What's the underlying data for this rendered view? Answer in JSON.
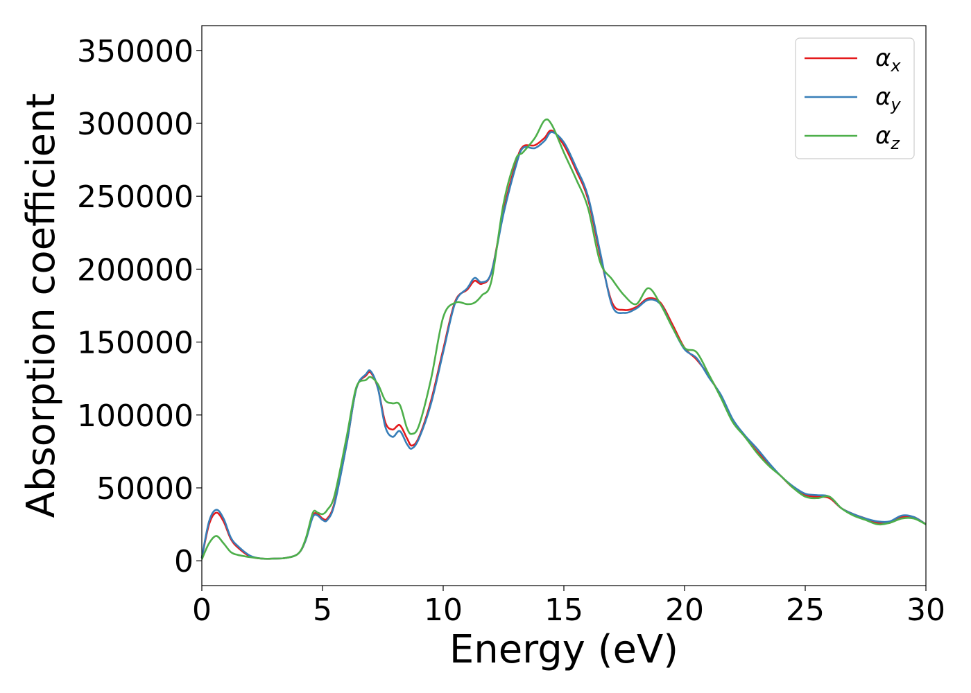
{
  "chart_data": {
    "type": "line",
    "title": "",
    "xlabel": "Energy (eV)",
    "ylabel": "Absorption coefficient",
    "xlim": [
      0,
      30
    ],
    "ylim": [
      -17000,
      367000
    ],
    "xticks": [
      0,
      5,
      10,
      15,
      20,
      25,
      30
    ],
    "xtick_labels": [
      "0",
      "5",
      "10",
      "15",
      "20",
      "25",
      "30"
    ],
    "yticks": [
      0,
      50000,
      100000,
      150000,
      200000,
      250000,
      300000,
      350000
    ],
    "ytick_labels": [
      "0",
      "50000",
      "100000",
      "150000",
      "200000",
      "250000",
      "300000",
      "350000"
    ],
    "grid": false,
    "legend_position": "top-right",
    "series": [
      {
        "name": "αx",
        "symbol": "α",
        "subscript": "x",
        "color": "#e41a1c",
        "x": [
          0,
          0.3,
          0.6,
          0.9,
          1.2,
          1.5,
          2,
          2.5,
          3,
          3.5,
          4,
          4.3,
          4.6,
          4.8,
          5,
          5.2,
          5.5,
          6,
          6.4,
          6.8,
          7,
          7.3,
          7.6,
          7.9,
          8.2,
          8.5,
          8.7,
          9,
          9.5,
          10,
          10.5,
          11,
          11.3,
          11.6,
          12,
          12.5,
          13,
          13.3,
          13.8,
          14.2,
          14.5,
          15,
          15.5,
          16,
          16.5,
          17,
          17.5,
          18,
          18.5,
          19,
          19.5,
          20,
          20.5,
          21,
          21.5,
          22,
          22.5,
          23,
          23.5,
          24,
          24.5,
          25,
          25.5,
          26,
          26.5,
          27,
          27.5,
          28,
          28.5,
          29,
          29.5,
          30
        ],
        "y": [
          2000,
          25000,
          33000,
          27000,
          15000,
          9000,
          3000,
          1500,
          1500,
          2000,
          5000,
          14000,
          31000,
          32000,
          29000,
          29000,
          40000,
          80000,
          118000,
          127000,
          129000,
          118000,
          95000,
          90000,
          93000,
          84000,
          79000,
          85000,
          110000,
          145000,
          178000,
          186000,
          192000,
          190000,
          198000,
          240000,
          272000,
          284000,
          285000,
          290000,
          295000,
          285000,
          268000,
          248000,
          210000,
          177000,
          172000,
          174000,
          180000,
          177000,
          162000,
          146000,
          138000,
          127000,
          113000,
          96000,
          85000,
          75000,
          66000,
          58000,
          50000,
          45000,
          44000,
          43000,
          36000,
          32000,
          29000,
          26000,
          26000,
          30000,
          30000,
          25000
        ]
      },
      {
        "name": "αy",
        "symbol": "α",
        "subscript": "y",
        "color": "#377eb8",
        "x": [
          0,
          0.3,
          0.6,
          0.9,
          1.2,
          1.5,
          2,
          2.5,
          3,
          3.5,
          4,
          4.3,
          4.6,
          4.8,
          5,
          5.2,
          5.5,
          6,
          6.4,
          6.8,
          7,
          7.3,
          7.6,
          7.9,
          8.2,
          8.5,
          8.7,
          9,
          9.5,
          10,
          10.5,
          11,
          11.3,
          11.6,
          12,
          12.5,
          13,
          13.3,
          13.8,
          14.2,
          14.5,
          15,
          15.5,
          16,
          16.5,
          17,
          17.5,
          18,
          18.5,
          19,
          19.5,
          20,
          20.5,
          21,
          21.5,
          22,
          22.5,
          23,
          23.5,
          24,
          24.5,
          25,
          25.5,
          26,
          26.5,
          27,
          27.5,
          28,
          28.5,
          29,
          29.5,
          30
        ],
        "y": [
          2000,
          27000,
          35000,
          29000,
          16000,
          10000,
          3500,
          1500,
          1500,
          2000,
          5000,
          14000,
          30000,
          31000,
          28000,
          28000,
          39000,
          80000,
          118000,
          128000,
          130000,
          118000,
          92000,
          85000,
          89000,
          80000,
          77000,
          84000,
          108000,
          143000,
          177000,
          187000,
          194000,
          191000,
          198000,
          238000,
          270000,
          283000,
          283000,
          288000,
          294000,
          287000,
          270000,
          250000,
          212000,
          175000,
          170000,
          173000,
          179000,
          176000,
          160000,
          145000,
          139000,
          126000,
          114000,
          97000,
          86000,
          77000,
          67000,
          58000,
          51000,
          46000,
          45000,
          44000,
          36000,
          32000,
          29000,
          27000,
          27000,
          31000,
          30000,
          25000
        ]
      },
      {
        "name": "αz",
        "symbol": "α",
        "subscript": "z",
        "color": "#4daf4a",
        "x": [
          0,
          0.3,
          0.6,
          0.9,
          1.2,
          1.5,
          2,
          2.5,
          3,
          3.5,
          4,
          4.3,
          4.6,
          4.8,
          5,
          5.2,
          5.5,
          6,
          6.4,
          6.8,
          7,
          7.3,
          7.6,
          7.9,
          8.2,
          8.5,
          8.7,
          9,
          9.5,
          10,
          10.5,
          11,
          11.3,
          11.6,
          12,
          12.5,
          13,
          13.3,
          13.8,
          14.2,
          14.5,
          15,
          15.5,
          16,
          16.5,
          17,
          17.5,
          18,
          18.5,
          19,
          19.5,
          20,
          20.5,
          21,
          21.5,
          22,
          22.5,
          23,
          23.5,
          24,
          24.5,
          25,
          25.5,
          26,
          26.5,
          27,
          27.5,
          28,
          28.5,
          29,
          29.5,
          30
        ],
        "y": [
          1000,
          12000,
          17000,
          12000,
          6000,
          4000,
          2500,
          1500,
          1500,
          2000,
          5000,
          15000,
          33000,
          33000,
          32000,
          35000,
          45000,
          85000,
          119000,
          124000,
          126000,
          121000,
          110000,
          108000,
          107000,
          91000,
          87000,
          93000,
          125000,
          167000,
          177000,
          176000,
          177000,
          182000,
          192000,
          245000,
          275000,
          280000,
          290000,
          302000,
          299000,
          280000,
          262000,
          242000,
          205000,
          193000,
          182000,
          176000,
          187000,
          176000,
          160000,
          146000,
          143000,
          128000,
          112000,
          95000,
          85000,
          74000,
          65000,
          58000,
          50000,
          44000,
          43000,
          44000,
          36000,
          31000,
          28000,
          25000,
          26000,
          29000,
          29000,
          25000
        ]
      }
    ]
  }
}
